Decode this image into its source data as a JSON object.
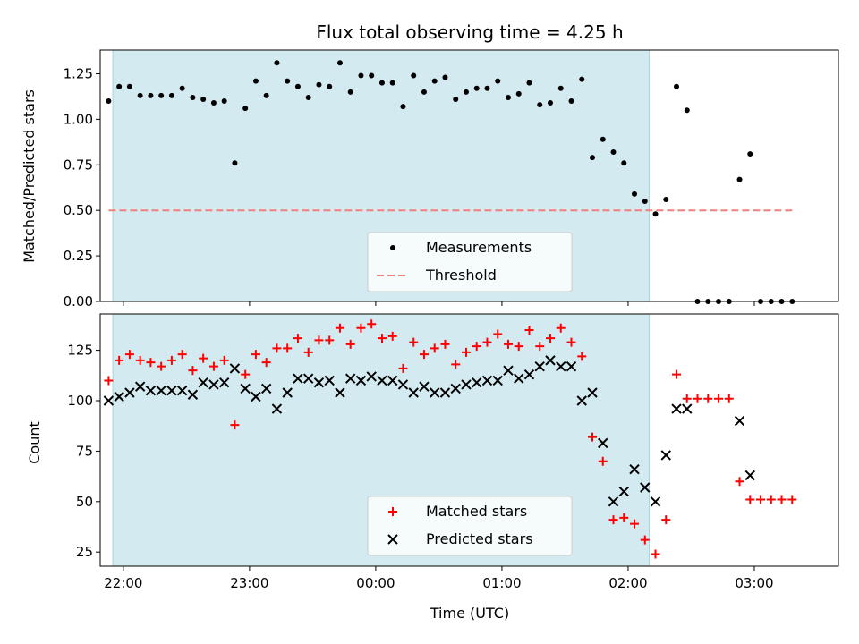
{
  "chart_data": [
    {
      "type": "scatter",
      "title": "Flux total observing time = 4.25 h",
      "xlabel": "",
      "ylabel": "Matched/Predicted stars",
      "xlim": [
        "21:49",
        "03:40"
      ],
      "ylim": [
        0.0,
        1.38
      ],
      "yticks": [
        0.0,
        0.25,
        0.5,
        0.75,
        1.0,
        1.25
      ],
      "ytick_labels": [
        "0.00",
        "0.25",
        "0.50",
        "0.75",
        "1.00",
        "1.25"
      ],
      "highlight_span": [
        "21:55",
        "02:10"
      ],
      "highlight_color": "#d3eaf1",
      "legend_position": "lower center",
      "series": [
        {
          "name": "Measurements",
          "marker": "dot",
          "color": "#000000",
          "points": [
            [
              "21:53",
              1.1
            ],
            [
              "21:58",
              1.18
            ],
            [
              "22:03",
              1.18
            ],
            [
              "22:08",
              1.13
            ],
            [
              "22:13",
              1.13
            ],
            [
              "22:18",
              1.13
            ],
            [
              "22:23",
              1.13
            ],
            [
              "22:28",
              1.17
            ],
            [
              "22:33",
              1.12
            ],
            [
              "22:38",
              1.11
            ],
            [
              "22:43",
              1.09
            ],
            [
              "22:48",
              1.1
            ],
            [
              "22:53",
              0.76
            ],
            [
              "22:58",
              1.06
            ],
            [
              "23:03",
              1.21
            ],
            [
              "23:08",
              1.13
            ],
            [
              "23:13",
              1.31
            ],
            [
              "23:18",
              1.21
            ],
            [
              "23:23",
              1.18
            ],
            [
              "23:28",
              1.12
            ],
            [
              "23:33",
              1.19
            ],
            [
              "23:38",
              1.18
            ],
            [
              "23:43",
              1.31
            ],
            [
              "23:48",
              1.15
            ],
            [
              "23:53",
              1.24
            ],
            [
              "23:58",
              1.24
            ],
            [
              "00:03",
              1.2
            ],
            [
              "00:08",
              1.2
            ],
            [
              "00:13",
              1.07
            ],
            [
              "00:18",
              1.24
            ],
            [
              "00:23",
              1.15
            ],
            [
              "00:28",
              1.21
            ],
            [
              "00:33",
              1.23
            ],
            [
              "00:38",
              1.11
            ],
            [
              "00:43",
              1.15
            ],
            [
              "00:48",
              1.17
            ],
            [
              "00:53",
              1.17
            ],
            [
              "00:58",
              1.21
            ],
            [
              "01:03",
              1.12
            ],
            [
              "01:08",
              1.14
            ],
            [
              "01:13",
              1.2
            ],
            [
              "01:18",
              1.08
            ],
            [
              "01:23",
              1.09
            ],
            [
              "01:28",
              1.17
            ],
            [
              "01:33",
              1.1
            ],
            [
              "01:38",
              1.22
            ],
            [
              "01:43",
              0.79
            ],
            [
              "01:48",
              0.89
            ],
            [
              "01:53",
              0.82
            ],
            [
              "01:58",
              0.76
            ],
            [
              "02:03",
              0.59
            ],
            [
              "02:08",
              0.55
            ],
            [
              "02:13",
              0.48
            ],
            [
              "02:18",
              0.56
            ],
            [
              "02:23",
              1.18
            ],
            [
              "02:28",
              1.05
            ],
            [
              "02:33",
              0.0
            ],
            [
              "02:38",
              0.0
            ],
            [
              "02:43",
              0.0
            ],
            [
              "02:48",
              0.0
            ],
            [
              "02:53",
              0.67
            ],
            [
              "02:58",
              0.81
            ],
            [
              "03:03",
              0.0
            ],
            [
              "03:08",
              0.0
            ],
            [
              "03:13",
              0.0
            ],
            [
              "03:18",
              0.0
            ]
          ]
        },
        {
          "name": "Threshold",
          "marker": "dashed-line",
          "color": "#f08080",
          "points": [
            [
              "21:53",
              0.5
            ],
            [
              "03:18",
              0.5
            ]
          ]
        }
      ]
    },
    {
      "type": "scatter",
      "title": "",
      "xlabel": "Time (UTC)",
      "ylabel": "Count",
      "xlim": [
        "21:49",
        "03:40"
      ],
      "ylim": [
        18,
        143
      ],
      "yticks": [
        25,
        50,
        75,
        100,
        125
      ],
      "ytick_labels": [
        "25",
        "50",
        "75",
        "100",
        "125"
      ],
      "xticks": [
        "22:00",
        "23:00",
        "00:00",
        "01:00",
        "02:00",
        "03:00"
      ],
      "highlight_span": [
        "21:55",
        "02:10"
      ],
      "highlight_color": "#d3eaf1",
      "legend_position": "lower center",
      "series": [
        {
          "name": "Matched stars",
          "marker": "plus",
          "color": "#ff0000",
          "points": [
            [
              "21:53",
              110
            ],
            [
              "21:58",
              120
            ],
            [
              "22:03",
              123
            ],
            [
              "22:08",
              120
            ],
            [
              "22:13",
              119
            ],
            [
              "22:18",
              117
            ],
            [
              "22:23",
              120
            ],
            [
              "22:28",
              123
            ],
            [
              "22:33",
              115
            ],
            [
              "22:38",
              121
            ],
            [
              "22:43",
              117
            ],
            [
              "22:48",
              120
            ],
            [
              "22:53",
              88
            ],
            [
              "22:58",
              113
            ],
            [
              "23:03",
              123
            ],
            [
              "23:08",
              119
            ],
            [
              "23:13",
              126
            ],
            [
              "23:18",
              126
            ],
            [
              "23:23",
              131
            ],
            [
              "23:28",
              124
            ],
            [
              "23:33",
              130
            ],
            [
              "23:38",
              130
            ],
            [
              "23:43",
              136
            ],
            [
              "23:48",
              128
            ],
            [
              "23:53",
              136
            ],
            [
              "23:58",
              138
            ],
            [
              "00:03",
              131
            ],
            [
              "00:08",
              132
            ],
            [
              "00:13",
              116
            ],
            [
              "00:18",
              129
            ],
            [
              "00:23",
              123
            ],
            [
              "00:28",
              126
            ],
            [
              "00:33",
              128
            ],
            [
              "00:38",
              118
            ],
            [
              "00:43",
              124
            ],
            [
              "00:48",
              127
            ],
            [
              "00:53",
              129
            ],
            [
              "00:58",
              133
            ],
            [
              "01:03",
              128
            ],
            [
              "01:08",
              127
            ],
            [
              "01:13",
              135
            ],
            [
              "01:18",
              127
            ],
            [
              "01:23",
              131
            ],
            [
              "01:28",
              136
            ],
            [
              "01:33",
              129
            ],
            [
              "01:38",
              122
            ],
            [
              "01:43",
              82
            ],
            [
              "01:48",
              70
            ],
            [
              "01:53",
              41
            ],
            [
              "01:58",
              42
            ],
            [
              "02:03",
              39
            ],
            [
              "02:08",
              31
            ],
            [
              "02:13",
              24
            ],
            [
              "02:18",
              41
            ],
            [
              "02:23",
              113
            ],
            [
              "02:28",
              101
            ],
            [
              "02:33",
              101
            ],
            [
              "02:38",
              101
            ],
            [
              "02:43",
              101
            ],
            [
              "02:48",
              101
            ],
            [
              "02:53",
              60
            ],
            [
              "02:58",
              51
            ],
            [
              "03:03",
              51
            ],
            [
              "03:08",
              51
            ],
            [
              "03:13",
              51
            ],
            [
              "03:18",
              51
            ]
          ]
        },
        {
          "name": "Predicted stars",
          "marker": "x",
          "color": "#000000",
          "points": [
            [
              "21:53",
              100
            ],
            [
              "21:58",
              102
            ],
            [
              "22:03",
              104
            ],
            [
              "22:08",
              107
            ],
            [
              "22:13",
              105
            ],
            [
              "22:18",
              105
            ],
            [
              "22:23",
              105
            ],
            [
              "22:28",
              105
            ],
            [
              "22:33",
              103
            ],
            [
              "22:38",
              109
            ],
            [
              "22:43",
              108
            ],
            [
              "22:48",
              109
            ],
            [
              "22:53",
              116
            ],
            [
              "22:58",
              106
            ],
            [
              "23:03",
              102
            ],
            [
              "23:08",
              106
            ],
            [
              "23:13",
              96
            ],
            [
              "23:18",
              104
            ],
            [
              "23:23",
              111
            ],
            [
              "23:28",
              111
            ],
            [
              "23:33",
              109
            ],
            [
              "23:38",
              110
            ],
            [
              "23:43",
              104
            ],
            [
              "23:48",
              111
            ],
            [
              "23:53",
              110
            ],
            [
              "23:58",
              112
            ],
            [
              "00:03",
              110
            ],
            [
              "00:08",
              110
            ],
            [
              "00:13",
              108
            ],
            [
              "00:18",
              104
            ],
            [
              "00:23",
              107
            ],
            [
              "00:28",
              104
            ],
            [
              "00:33",
              104
            ],
            [
              "00:38",
              106
            ],
            [
              "00:43",
              108
            ],
            [
              "00:48",
              109
            ],
            [
              "00:53",
              110
            ],
            [
              "00:58",
              110
            ],
            [
              "01:03",
              115
            ],
            [
              "01:08",
              111
            ],
            [
              "01:13",
              113
            ],
            [
              "01:18",
              117
            ],
            [
              "01:23",
              120
            ],
            [
              "01:28",
              117
            ],
            [
              "01:33",
              117
            ],
            [
              "01:38",
              100
            ],
            [
              "01:43",
              104
            ],
            [
              "01:48",
              79
            ],
            [
              "01:53",
              50
            ],
            [
              "01:58",
              55
            ],
            [
              "02:03",
              66
            ],
            [
              "02:08",
              57
            ],
            [
              "02:13",
              50
            ],
            [
              "02:18",
              73
            ],
            [
              "02:23",
              96
            ],
            [
              "02:28",
              96
            ],
            [
              "02:53",
              90
            ],
            [
              "02:58",
              63
            ]
          ]
        }
      ]
    }
  ]
}
